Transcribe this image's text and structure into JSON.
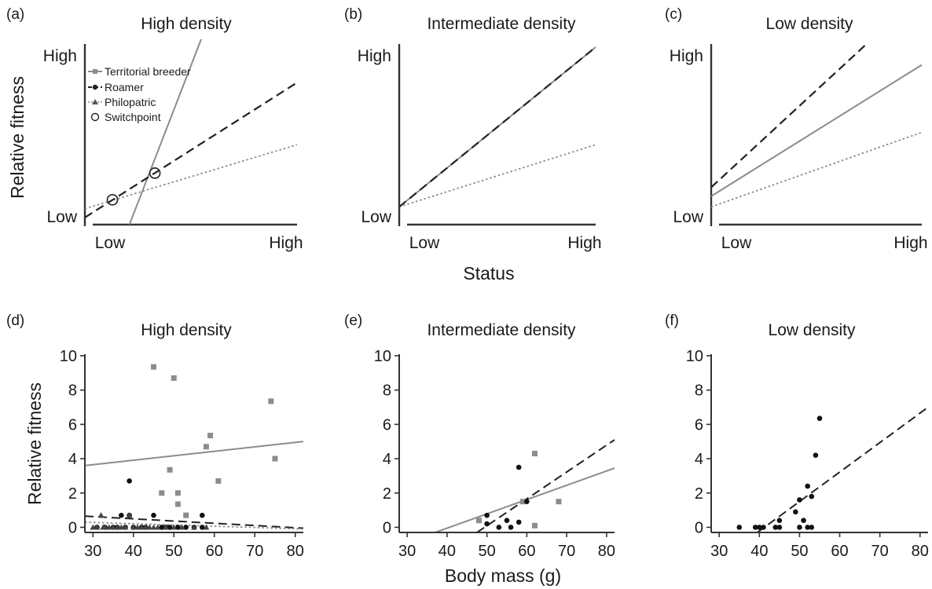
{
  "figure": {
    "top_xlabel": "Status",
    "top_ylabel": "Relative fitness",
    "bottom_xlabel": "Body mass (g)",
    "bottom_ylabel": "Relative fitness"
  },
  "legend": {
    "placement": "top-left of panel (a)",
    "items": [
      "Territorial breeder",
      "Roamer",
      "Philopatric",
      "Switchpoint"
    ]
  },
  "colors": {
    "territorial": "#8c8c8c",
    "roamer": "#222222",
    "philopatric": "#8c8c8c",
    "axis": "#333333"
  },
  "chart_data": [
    {
      "panel": "(a)",
      "title": "High density",
      "type": "line",
      "ylabel": "Relative fitness",
      "xlabel": "Status",
      "x_ticks": [
        "Low",
        "High"
      ],
      "y_ticks": [
        "Low",
        "High"
      ],
      "xlim": [
        0,
        1
      ],
      "ylim": [
        0,
        1
      ],
      "grid": false,
      "series": [
        {
          "name": "Territorial breeder",
          "x": [
            0.21,
            0.55
          ],
          "y": [
            0,
            1.05
          ]
        },
        {
          "name": "Roamer",
          "x": [
            0,
            1
          ],
          "y": [
            0.04,
            0.8
          ]
        },
        {
          "name": "Philopatric",
          "x": [
            0,
            1
          ],
          "y": [
            0.09,
            0.45
          ]
        }
      ],
      "switchpoints": [
        {
          "x": 0.13,
          "y": 0.14
        },
        {
          "x": 0.33,
          "y": 0.29
        }
      ]
    },
    {
      "panel": "(b)",
      "title": "Intermediate density",
      "type": "line",
      "x_ticks": [
        "Low",
        "High"
      ],
      "y_ticks": [
        "Low",
        "High"
      ],
      "xlim": [
        0,
        1
      ],
      "ylim": [
        0,
        1
      ],
      "grid": false,
      "series": [
        {
          "name": "Territorial breeder",
          "x": [
            0,
            1
          ],
          "y": [
            0.1,
            1.0
          ]
        },
        {
          "name": "Roamer",
          "x": [
            0,
            1
          ],
          "y": [
            0.1,
            1.0
          ]
        },
        {
          "name": "Philopatric",
          "x": [
            0,
            1
          ],
          "y": [
            0.1,
            0.45
          ]
        }
      ]
    },
    {
      "panel": "(c)",
      "title": "Low density",
      "type": "line",
      "x_ticks": [
        "Low",
        "High"
      ],
      "y_ticks": [
        "Low",
        "High"
      ],
      "xlim": [
        0,
        1
      ],
      "ylim": [
        0,
        1
      ],
      "grid": false,
      "series": [
        {
          "name": "Territorial breeder",
          "x": [
            0,
            1
          ],
          "y": [
            0.16,
            0.9
          ]
        },
        {
          "name": "Roamer",
          "x": [
            0,
            0.74
          ],
          "y": [
            0.21,
            1.02
          ]
        },
        {
          "name": "Philopatric",
          "x": [
            0,
            1
          ],
          "y": [
            0.1,
            0.52
          ]
        }
      ]
    },
    {
      "panel": "(d)",
      "title": "High density",
      "type": "scatter",
      "ylabel": "Relative fitness",
      "xlabel": "Body mass (g)",
      "xlim": [
        28,
        82
      ],
      "ylim": [
        -0.3,
        10
      ],
      "x_ticks": [
        30,
        40,
        50,
        60,
        70,
        80
      ],
      "y_ticks": [
        0,
        2,
        4,
        6,
        8,
        10
      ],
      "grid": false,
      "series": [
        {
          "name": "Territorial breeder",
          "x": [
            45,
            50,
            74,
            59,
            58,
            75,
            49,
            61,
            47,
            51,
            51,
            53
          ],
          "y": [
            9.35,
            8.7,
            7.35,
            5.35,
            4.7,
            4.0,
            3.35,
            2.7,
            2.0,
            2.0,
            1.35,
            0.7
          ]
        },
        {
          "name": "Roamer",
          "x": [
            39,
            37,
            39,
            45,
            57,
            31,
            33,
            35,
            36,
            38,
            40,
            42,
            43,
            47,
            48,
            49,
            51,
            53,
            55,
            57
          ],
          "y": [
            2.7,
            0.7,
            0.7,
            0.7,
            0.7,
            0,
            0,
            0,
            0,
            0,
            0,
            0,
            0,
            0,
            0,
            0,
            0,
            0,
            0,
            0
          ]
        },
        {
          "name": "Philopatric",
          "x": [
            30,
            31,
            32,
            32.5,
            33,
            34,
            35,
            36,
            37,
            38,
            39,
            40,
            41,
            42,
            43,
            44,
            45,
            46,
            48,
            50,
            52,
            55,
            58
          ],
          "y": [
            0,
            0,
            0.7,
            0,
            0,
            0,
            0,
            0,
            0,
            0,
            0.7,
            0,
            0,
            0,
            0,
            0,
            0,
            0,
            0,
            0,
            0,
            0,
            0
          ]
        }
      ],
      "fit_lines": [
        {
          "name": "Territorial breeder",
          "x": [
            28,
            82
          ],
          "y": [
            3.6,
            5.0
          ]
        },
        {
          "name": "Roamer",
          "x": [
            28,
            82
          ],
          "y": [
            0.65,
            -0.05
          ]
        },
        {
          "name": "Philopatric",
          "x": [
            28,
            82
          ],
          "y": [
            0.3,
            -0.1
          ]
        }
      ]
    },
    {
      "panel": "(e)",
      "title": "Intermediate density",
      "type": "scatter",
      "xlim": [
        28,
        82
      ],
      "ylim": [
        -0.3,
        10
      ],
      "x_ticks": [
        30,
        40,
        50,
        60,
        70,
        80
      ],
      "y_ticks": [
        0,
        2,
        4,
        6,
        8,
        10
      ],
      "grid": false,
      "series": [
        {
          "name": "Territorial breeder",
          "x": [
            62,
            68,
            48,
            62,
            59
          ],
          "y": [
            4.3,
            1.5,
            0.4,
            0.1,
            1.5
          ]
        },
        {
          "name": "Roamer",
          "x": [
            58,
            50,
            50,
            53,
            55,
            56,
            58,
            60
          ],
          "y": [
            3.5,
            0.7,
            0.2,
            0,
            0.4,
            0,
            0.3,
            1.5
          ]
        }
      ],
      "fit_lines": [
        {
          "name": "Territorial breeder",
          "x": [
            37,
            82
          ],
          "y": [
            -0.3,
            3.45
          ]
        },
        {
          "name": "Roamer",
          "x": [
            47.5,
            82
          ],
          "y": [
            -0.3,
            5.1
          ]
        }
      ]
    },
    {
      "panel": "(f)",
      "title": "Low density",
      "type": "scatter",
      "xlim": [
        28,
        82
      ],
      "ylim": [
        -0.3,
        10
      ],
      "x_ticks": [
        30,
        40,
        50,
        60,
        70,
        80
      ],
      "y_ticks": [
        0,
        2,
        4,
        6,
        8,
        10
      ],
      "grid": false,
      "series": [
        {
          "name": "Roamer",
          "x": [
            55,
            54,
            52,
            53,
            50,
            49,
            51,
            45,
            35,
            39,
            40,
            41,
            44,
            45,
            50,
            52,
            53
          ],
          "y": [
            6.35,
            4.2,
            2.4,
            1.8,
            1.6,
            0.9,
            0.4,
            0.4,
            0,
            0,
            0,
            0,
            0,
            0,
            0,
            0,
            0
          ]
        }
      ],
      "fit_lines": [
        {
          "name": "Roamer",
          "x": [
            39.5,
            82
          ],
          "y": [
            -0.3,
            7.0
          ]
        }
      ]
    }
  ]
}
